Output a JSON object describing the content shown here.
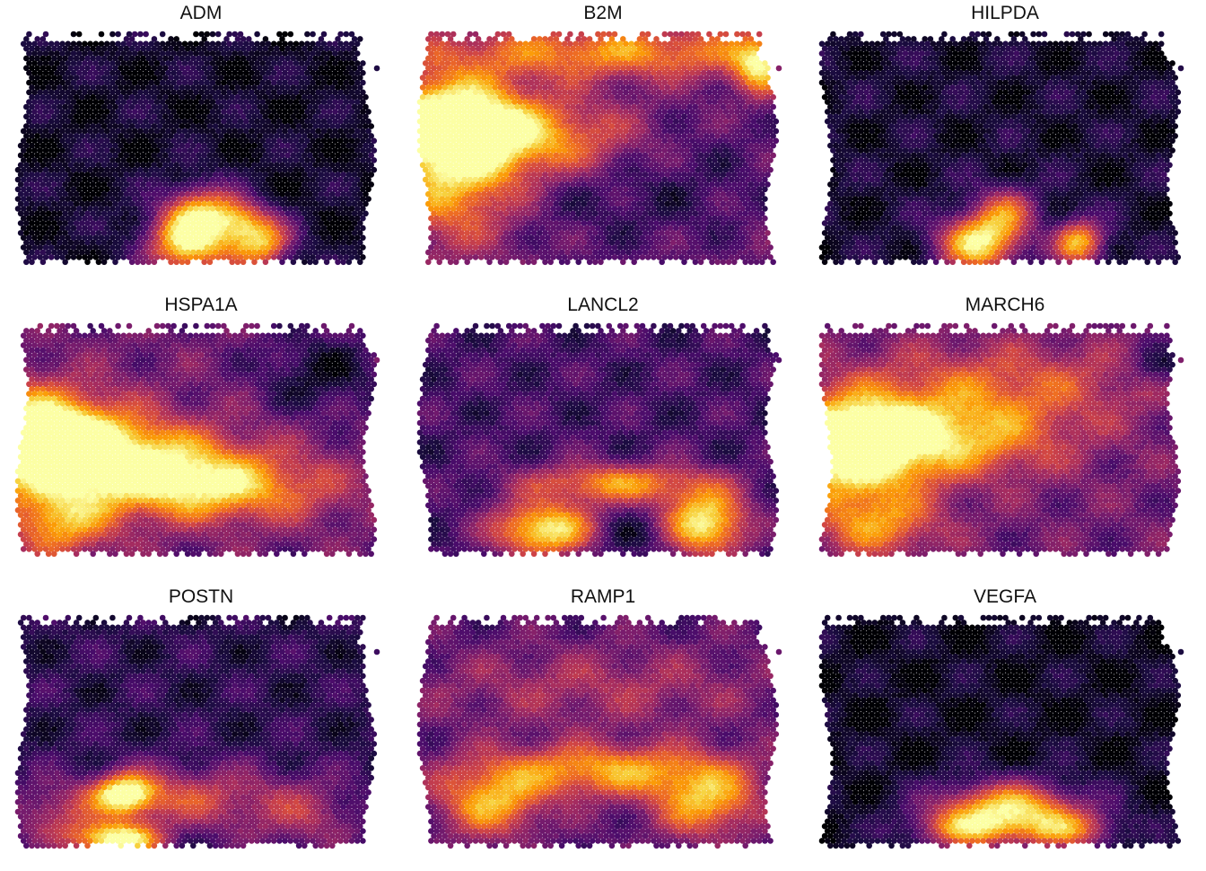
{
  "chart_data": {
    "type": "heatmap",
    "subtype": "spatial-feature-plot",
    "colormap": "inferno",
    "colormap_stops": [
      "#000004",
      "#1b0c41",
      "#4a0c6b",
      "#781c6d",
      "#a52c60",
      "#cf4446",
      "#ed6925",
      "#fb9b06",
      "#f7d13d",
      "#fcffa4"
    ],
    "grid": false,
    "legend": "none",
    "layout": {
      "rows": 3,
      "cols": 3
    },
    "panels": [
      {
        "title": "ADM",
        "hotspots": [
          {
            "x": 0.48,
            "y": 0.9,
            "sx": 0.08,
            "sy": 0.1,
            "v": 0.92
          },
          {
            "x": 0.68,
            "y": 0.9,
            "sx": 0.06,
            "sy": 0.08,
            "v": 0.75
          },
          {
            "x": 0.52,
            "y": 0.76,
            "sx": 0.07,
            "sy": 0.08,
            "v": 0.55
          },
          {
            "x": 0.62,
            "y": 0.8,
            "sx": 0.05,
            "sy": 0.06,
            "v": 0.4
          }
        ],
        "base": 0.07
      },
      {
        "title": "B2M",
        "hotspots": [
          {
            "x": 0.08,
            "y": 0.38,
            "sx": 0.14,
            "sy": 0.14,
            "v": 0.85
          },
          {
            "x": 0.32,
            "y": 0.45,
            "sx": 0.22,
            "sy": 0.12,
            "v": 0.55
          },
          {
            "x": 0.1,
            "y": 0.68,
            "sx": 0.12,
            "sy": 0.16,
            "v": 0.45
          },
          {
            "x": 0.55,
            "y": 0.08,
            "sx": 0.35,
            "sy": 0.08,
            "v": 0.45
          },
          {
            "x": 0.95,
            "y": 0.14,
            "sx": 0.05,
            "sy": 0.08,
            "v": 0.55
          },
          {
            "x": 0.6,
            "y": 0.6,
            "sx": 0.3,
            "sy": 0.25,
            "v": -0.2
          }
        ],
        "base": 0.32
      },
      {
        "title": "HILPDA",
        "hotspots": [
          {
            "x": 0.44,
            "y": 0.9,
            "sx": 0.08,
            "sy": 0.09,
            "v": 0.88
          },
          {
            "x": 0.72,
            "y": 0.9,
            "sx": 0.05,
            "sy": 0.07,
            "v": 0.75
          },
          {
            "x": 0.52,
            "y": 0.76,
            "sx": 0.06,
            "sy": 0.08,
            "v": 0.45
          }
        ],
        "base": 0.08
      },
      {
        "title": "HSPA1A",
        "hotspots": [
          {
            "x": 0.05,
            "y": 0.48,
            "sx": 0.16,
            "sy": 0.14,
            "v": 0.95
          },
          {
            "x": 0.3,
            "y": 0.58,
            "sx": 0.22,
            "sy": 0.12,
            "v": 0.6
          },
          {
            "x": 0.55,
            "y": 0.7,
            "sx": 0.22,
            "sy": 0.1,
            "v": 0.55
          },
          {
            "x": 0.12,
            "y": 0.85,
            "sx": 0.1,
            "sy": 0.1,
            "v": 0.5
          },
          {
            "x": 0.85,
            "y": 0.2,
            "sx": 0.12,
            "sy": 0.12,
            "v": -0.25
          }
        ],
        "base": 0.3
      },
      {
        "title": "LANCL2",
        "hotspots": [
          {
            "x": 0.35,
            "y": 0.88,
            "sx": 0.1,
            "sy": 0.08,
            "v": 0.8
          },
          {
            "x": 0.8,
            "y": 0.85,
            "sx": 0.08,
            "sy": 0.1,
            "v": 0.8
          },
          {
            "x": 0.55,
            "y": 0.68,
            "sx": 0.18,
            "sy": 0.06,
            "v": 0.55
          },
          {
            "x": 0.58,
            "y": 0.9,
            "sx": 0.08,
            "sy": 0.06,
            "v": -0.15
          }
        ],
        "base": 0.2
      },
      {
        "title": "MARCH6",
        "hotspots": [
          {
            "x": 0.08,
            "y": 0.52,
            "sx": 0.14,
            "sy": 0.14,
            "v": 0.92
          },
          {
            "x": 0.35,
            "y": 0.48,
            "sx": 0.22,
            "sy": 0.12,
            "v": 0.55
          },
          {
            "x": 0.5,
            "y": 0.25,
            "sx": 0.3,
            "sy": 0.12,
            "v": 0.3
          },
          {
            "x": 0.15,
            "y": 0.85,
            "sx": 0.12,
            "sy": 0.1,
            "v": 0.45
          },
          {
            "x": 0.95,
            "y": 0.18,
            "sx": 0.06,
            "sy": 0.06,
            "v": -0.25
          }
        ],
        "base": 0.3
      },
      {
        "title": "POSTN",
        "hotspots": [
          {
            "x": 0.3,
            "y": 0.76,
            "sx": 0.06,
            "sy": 0.06,
            "v": 0.85
          },
          {
            "x": 0.28,
            "y": 0.96,
            "sx": 0.08,
            "sy": 0.05,
            "v": 0.9
          },
          {
            "x": 0.48,
            "y": 0.78,
            "sx": 0.15,
            "sy": 0.1,
            "v": 0.4
          },
          {
            "x": 0.12,
            "y": 0.85,
            "sx": 0.1,
            "sy": 0.1,
            "v": 0.35
          },
          {
            "x": 0.8,
            "y": 0.85,
            "sx": 0.12,
            "sy": 0.12,
            "v": 0.3
          }
        ],
        "base": 0.14
      },
      {
        "title": "RAMP1",
        "hotspots": [
          {
            "x": 0.52,
            "y": 0.66,
            "sx": 0.25,
            "sy": 0.08,
            "v": 0.55
          },
          {
            "x": 0.2,
            "y": 0.8,
            "sx": 0.1,
            "sy": 0.1,
            "v": 0.55
          },
          {
            "x": 0.8,
            "y": 0.8,
            "sx": 0.1,
            "sy": 0.1,
            "v": 0.55
          },
          {
            "x": 0.5,
            "y": 0.3,
            "sx": 0.35,
            "sy": 0.12,
            "v": 0.2
          }
        ],
        "base": 0.25
      },
      {
        "title": "VEGFA",
        "hotspots": [
          {
            "x": 0.52,
            "y": 0.82,
            "sx": 0.14,
            "sy": 0.08,
            "v": 0.8
          },
          {
            "x": 0.4,
            "y": 0.92,
            "sx": 0.1,
            "sy": 0.06,
            "v": 0.55
          },
          {
            "x": 0.68,
            "y": 0.92,
            "sx": 0.1,
            "sy": 0.06,
            "v": 0.55
          }
        ],
        "base": 0.06
      }
    ]
  }
}
